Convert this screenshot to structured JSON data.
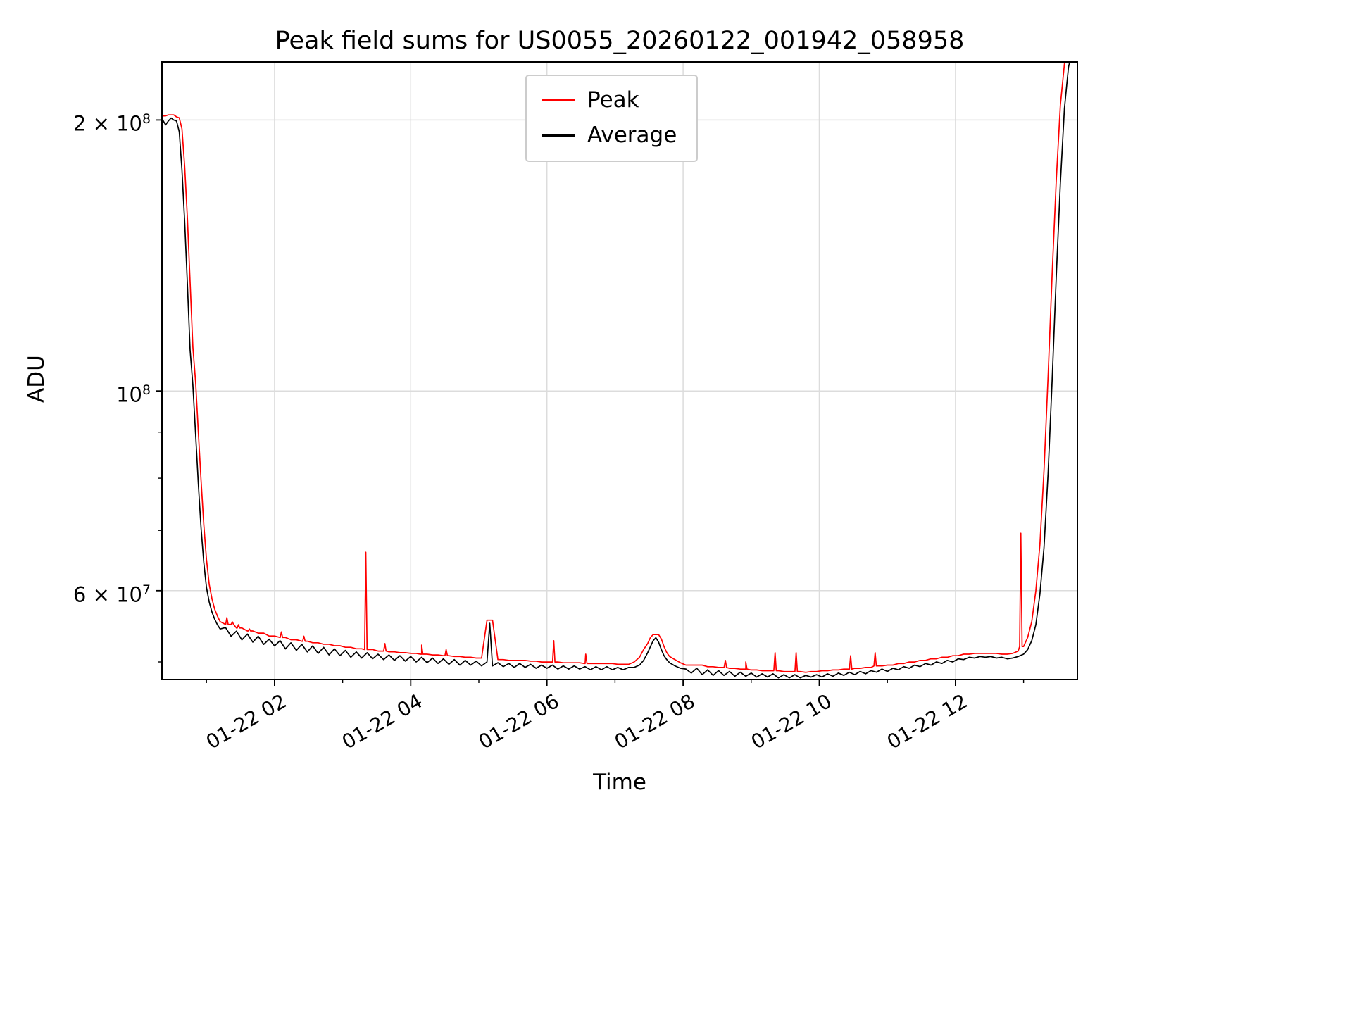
{
  "chart_data": {
    "type": "line",
    "title": "Peak field sums for US0055_20260122_001942_058958",
    "xlabel": "Time",
    "ylabel": "ADU",
    "yscale": "log",
    "x_unit": "hours since 2026-01-22 00:00",
    "x_range": [
      0.346,
      13.79
    ],
    "y_range": [
      47800000,
      232000000
    ],
    "value_scale": 10000000,
    "grid": true,
    "legend_position": "upper center",
    "legend": [
      {
        "label": "Peak",
        "color": "#ff0000"
      },
      {
        "label": "Average",
        "color": "#000000"
      }
    ],
    "x_ticks": [
      {
        "t": 2,
        "label": "01-22 02"
      },
      {
        "t": 4,
        "label": "01-22 04"
      },
      {
        "t": 6,
        "label": "01-22 06"
      },
      {
        "t": 8,
        "label": "01-22 08"
      },
      {
        "t": 10,
        "label": "01-22 10"
      },
      {
        "t": 12,
        "label": "01-22 12"
      }
    ],
    "x_minor_ticks": [
      1,
      3,
      5,
      7,
      9,
      11,
      13
    ],
    "y_ticks": [
      {
        "value": 200000000,
        "base": "2 × 10",
        "exp": "8"
      },
      {
        "value": 100000000,
        "base": "10",
        "exp": "8"
      },
      {
        "value": 60000000,
        "base": "6 × 10",
        "exp": "7"
      }
    ],
    "y_minor_ticks": [
      50000000,
      70000000,
      80000000,
      90000000
    ],
    "series": {
      "average": {
        "name": "Average",
        "color": "#000000",
        "points": [
          [
            0.35,
            20.05
          ],
          [
            0.4,
            19.75
          ],
          [
            0.44,
            19.95
          ],
          [
            0.48,
            20.1
          ],
          [
            0.52,
            20.0
          ],
          [
            0.56,
            19.95
          ],
          [
            0.6,
            19.4
          ],
          [
            0.64,
            17.6
          ],
          [
            0.68,
            15.4
          ],
          [
            0.72,
            13.1
          ],
          [
            0.76,
            11.1
          ],
          [
            0.8,
            10.15
          ],
          [
            0.84,
            8.95
          ],
          [
            0.88,
            7.9
          ],
          [
            0.92,
            7.05
          ],
          [
            0.96,
            6.45
          ],
          [
            1.0,
            6.05
          ],
          [
            1.04,
            5.83
          ],
          [
            1.08,
            5.68
          ],
          [
            1.12,
            5.58
          ],
          [
            1.16,
            5.5
          ],
          [
            1.2,
            5.44
          ],
          [
            1.28,
            5.46
          ],
          [
            1.36,
            5.34
          ],
          [
            1.44,
            5.41
          ],
          [
            1.52,
            5.29
          ],
          [
            1.6,
            5.37
          ],
          [
            1.68,
            5.26
          ],
          [
            1.76,
            5.34
          ],
          [
            1.84,
            5.23
          ],
          [
            1.92,
            5.3
          ],
          [
            2.0,
            5.21
          ],
          [
            2.08,
            5.28
          ],
          [
            2.16,
            5.17
          ],
          [
            2.24,
            5.25
          ],
          [
            2.32,
            5.15
          ],
          [
            2.4,
            5.23
          ],
          [
            2.48,
            5.13
          ],
          [
            2.56,
            5.21
          ],
          [
            2.64,
            5.11
          ],
          [
            2.72,
            5.19
          ],
          [
            2.8,
            5.09
          ],
          [
            2.88,
            5.17
          ],
          [
            2.96,
            5.08
          ],
          [
            3.04,
            5.15
          ],
          [
            3.12,
            5.06
          ],
          [
            3.2,
            5.13
          ],
          [
            3.28,
            5.05
          ],
          [
            3.36,
            5.12
          ],
          [
            3.44,
            5.04
          ],
          [
            3.52,
            5.1
          ],
          [
            3.6,
            5.03
          ],
          [
            3.68,
            5.09
          ],
          [
            3.76,
            5.02
          ],
          [
            3.84,
            5.08
          ],
          [
            3.92,
            5.01
          ],
          [
            4.0,
            5.07
          ],
          [
            4.08,
            5.0
          ],
          [
            4.16,
            5.06
          ],
          [
            4.24,
            4.99
          ],
          [
            4.32,
            5.05
          ],
          [
            4.4,
            4.98
          ],
          [
            4.48,
            5.04
          ],
          [
            4.56,
            4.97
          ],
          [
            4.64,
            5.03
          ],
          [
            4.72,
            4.96
          ],
          [
            4.8,
            5.02
          ],
          [
            4.88,
            4.96
          ],
          [
            4.96,
            5.01
          ],
          [
            5.04,
            4.95
          ],
          [
            5.12,
            5.0
          ],
          [
            5.16,
            5.52
          ],
          [
            5.2,
            4.95
          ],
          [
            5.28,
            4.99
          ],
          [
            5.36,
            4.94
          ],
          [
            5.44,
            4.98
          ],
          [
            5.52,
            4.93
          ],
          [
            5.6,
            4.98
          ],
          [
            5.68,
            4.93
          ],
          [
            5.76,
            4.97
          ],
          [
            5.84,
            4.92
          ],
          [
            5.92,
            4.96
          ],
          [
            6.0,
            4.92
          ],
          [
            6.08,
            4.96
          ],
          [
            6.16,
            4.91
          ],
          [
            6.24,
            4.95
          ],
          [
            6.32,
            4.91
          ],
          [
            6.4,
            4.95
          ],
          [
            6.48,
            4.91
          ],
          [
            6.56,
            4.94
          ],
          [
            6.64,
            4.9
          ],
          [
            6.72,
            4.94
          ],
          [
            6.8,
            4.9
          ],
          [
            6.88,
            4.94
          ],
          [
            6.96,
            4.9
          ],
          [
            7.04,
            4.93
          ],
          [
            7.12,
            4.9
          ],
          [
            7.2,
            4.93
          ],
          [
            7.28,
            4.93
          ],
          [
            7.36,
            4.96
          ],
          [
            7.42,
            5.02
          ],
          [
            7.48,
            5.12
          ],
          [
            7.52,
            5.2
          ],
          [
            7.56,
            5.28
          ],
          [
            7.6,
            5.32
          ],
          [
            7.64,
            5.26
          ],
          [
            7.68,
            5.16
          ],
          [
            7.72,
            5.08
          ],
          [
            7.76,
            5.03
          ],
          [
            7.8,
            4.99
          ],
          [
            7.88,
            4.95
          ],
          [
            7.96,
            4.92
          ],
          [
            8.04,
            4.91
          ],
          [
            8.12,
            4.86
          ],
          [
            8.2,
            4.92
          ],
          [
            8.28,
            4.84
          ],
          [
            8.36,
            4.9
          ],
          [
            8.44,
            4.83
          ],
          [
            8.52,
            4.89
          ],
          [
            8.6,
            4.83
          ],
          [
            8.68,
            4.88
          ],
          [
            8.76,
            4.82
          ],
          [
            8.84,
            4.87
          ],
          [
            8.92,
            4.82
          ],
          [
            9.0,
            4.86
          ],
          [
            9.08,
            4.81
          ],
          [
            9.16,
            4.85
          ],
          [
            9.24,
            4.81
          ],
          [
            9.32,
            4.85
          ],
          [
            9.4,
            4.8
          ],
          [
            9.48,
            4.84
          ],
          [
            9.56,
            4.8
          ],
          [
            9.64,
            4.84
          ],
          [
            9.72,
            4.8
          ],
          [
            9.8,
            4.83
          ],
          [
            9.88,
            4.81
          ],
          [
            9.96,
            4.84
          ],
          [
            10.04,
            4.81
          ],
          [
            10.12,
            4.85
          ],
          [
            10.2,
            4.82
          ],
          [
            10.28,
            4.86
          ],
          [
            10.36,
            4.83
          ],
          [
            10.44,
            4.87
          ],
          [
            10.52,
            4.84
          ],
          [
            10.6,
            4.88
          ],
          [
            10.68,
            4.85
          ],
          [
            10.76,
            4.89
          ],
          [
            10.84,
            4.87
          ],
          [
            10.92,
            4.91
          ],
          [
            11.0,
            4.88
          ],
          [
            11.08,
            4.92
          ],
          [
            11.16,
            4.9
          ],
          [
            11.24,
            4.94
          ],
          [
            11.32,
            4.92
          ],
          [
            11.4,
            4.96
          ],
          [
            11.48,
            4.94
          ],
          [
            11.56,
            4.98
          ],
          [
            11.64,
            4.96
          ],
          [
            11.72,
            5.0
          ],
          [
            11.8,
            4.98
          ],
          [
            11.88,
            5.02
          ],
          [
            11.96,
            5.0
          ],
          [
            12.04,
            5.04
          ],
          [
            12.12,
            5.03
          ],
          [
            12.2,
            5.06
          ],
          [
            12.28,
            5.05
          ],
          [
            12.36,
            5.07
          ],
          [
            12.44,
            5.06
          ],
          [
            12.52,
            5.07
          ],
          [
            12.6,
            5.05
          ],
          [
            12.68,
            5.06
          ],
          [
            12.76,
            5.04
          ],
          [
            12.84,
            5.05
          ],
          [
            12.92,
            5.07
          ],
          [
            13.0,
            5.1
          ],
          [
            13.06,
            5.16
          ],
          [
            13.12,
            5.28
          ],
          [
            13.18,
            5.5
          ],
          [
            13.24,
            5.95
          ],
          [
            13.3,
            6.7
          ],
          [
            13.36,
            8.1
          ],
          [
            13.42,
            10.3
          ],
          [
            13.48,
            13.4
          ],
          [
            13.54,
            17.0
          ],
          [
            13.6,
            20.6
          ],
          [
            13.66,
            22.9
          ],
          [
            13.72,
            23.9
          ],
          [
            13.79,
            24.1
          ]
        ]
      },
      "peak": {
        "name": "Peak",
        "color": "#ff0000",
        "envelope_factor": 1.008,
        "spikes": [
          [
            1.3,
            5.6
          ],
          [
            1.38,
            5.54
          ],
          [
            1.47,
            5.5
          ],
          [
            1.63,
            5.44
          ],
          [
            2.1,
            5.4
          ],
          [
            2.43,
            5.34
          ],
          [
            3.34,
            6.62
          ],
          [
            3.62,
            5.24
          ],
          [
            4.16,
            5.22
          ],
          [
            4.52,
            5.16
          ],
          [
            6.1,
            5.28
          ],
          [
            6.57,
            5.1
          ],
          [
            8.62,
            5.02
          ],
          [
            8.92,
            5.0
          ],
          [
            9.35,
            5.12
          ],
          [
            9.66,
            5.12
          ],
          [
            10.46,
            5.08
          ],
          [
            10.82,
            5.12
          ],
          [
            12.96,
            6.95
          ]
        ]
      }
    }
  }
}
